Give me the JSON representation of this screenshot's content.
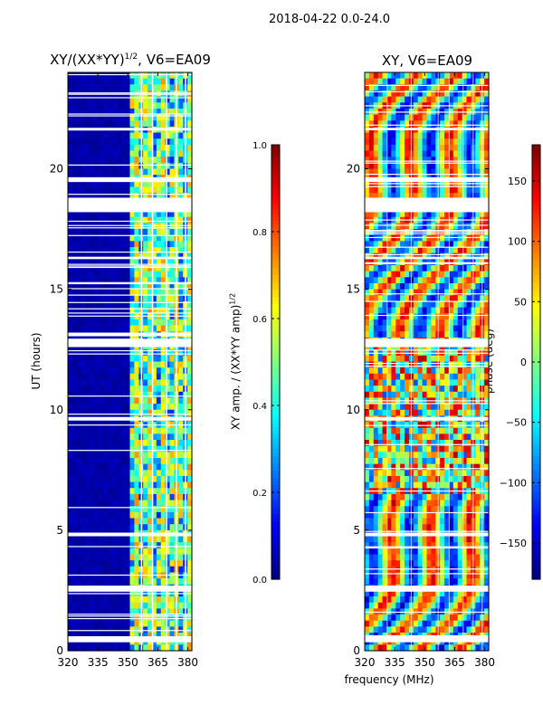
{
  "page": {
    "suptitle": "2018-04-22 0.0-24.0"
  },
  "chart_data": [
    {
      "type": "heatmap",
      "title_main": "XY/(XX*YY)",
      "title_sup": "1/2",
      "title_suffix": ", V6=EA09",
      "xlabel": "",
      "ylabel": "UT (hours)",
      "xlim": [
        320,
        382
      ],
      "ylim": [
        0,
        24
      ],
      "xticks": [
        "320",
        "335",
        "350",
        "365",
        "380"
      ],
      "xtick_values": [
        320,
        335,
        350,
        365,
        380
      ],
      "yticks": [
        "0",
        "5",
        "10",
        "15",
        "20"
      ],
      "ytick_values": [
        0,
        5,
        10,
        15,
        20
      ],
      "colormap": "jet",
      "colorbar": {
        "label_main": "XY amp. / (XX*YY amp)",
        "label_sup": "1/2",
        "range": [
          0.0,
          1.0
        ],
        "ticks": [
          "0.0",
          "0.2",
          "0.4",
          "0.6",
          "0.8",
          "1.0"
        ],
        "tick_values": [
          0.0,
          0.2,
          0.4,
          0.6,
          0.8,
          1.0
        ]
      },
      "blank_ut_bands": [
        [
          0.35,
          0.6
        ],
        [
          2.45,
          2.7
        ],
        [
          4.75,
          4.9
        ],
        [
          12.6,
          12.95
        ],
        [
          13.05,
          13.2
        ],
        [
          16.25,
          16.35
        ],
        [
          18.2,
          18.8
        ],
        [
          19.45,
          19.65
        ],
        [
          21.6,
          21.7
        ],
        [
          9.55,
          9.7
        ]
      ],
      "active_freq_range_mhz": [
        352,
        382
      ]
    },
    {
      "type": "heatmap",
      "title_main": "XY, V6=EA09",
      "xlabel": "frequency (MHz)",
      "ylabel": "",
      "xlim": [
        320,
        382
      ],
      "ylim": [
        0,
        24
      ],
      "xticks": [
        "320",
        "335",
        "350",
        "365",
        "380"
      ],
      "xtick_values": [
        320,
        335,
        350,
        365,
        380
      ],
      "yticks": [
        "0",
        "5",
        "10",
        "15",
        "20"
      ],
      "ytick_values": [
        0,
        5,
        10,
        15,
        20
      ],
      "colormap": "jet",
      "colorbar": {
        "label": "phase (deg)",
        "range": [
          -180,
          180
        ],
        "ticks": [
          "−150",
          "−100",
          "−50",
          "0",
          "50",
          "100",
          "150"
        ],
        "tick_values": [
          -150,
          -100,
          -50,
          0,
          50,
          100,
          150
        ]
      },
      "blank_ut_bands": [
        [
          0.35,
          0.6
        ],
        [
          2.45,
          2.7
        ],
        [
          4.75,
          4.9
        ],
        [
          12.6,
          12.95
        ],
        [
          16.25,
          16.35
        ],
        [
          18.2,
          18.8
        ],
        [
          19.45,
          19.65
        ],
        [
          21.6,
          21.7
        ],
        [
          9.55,
          9.7
        ]
      ]
    }
  ]
}
